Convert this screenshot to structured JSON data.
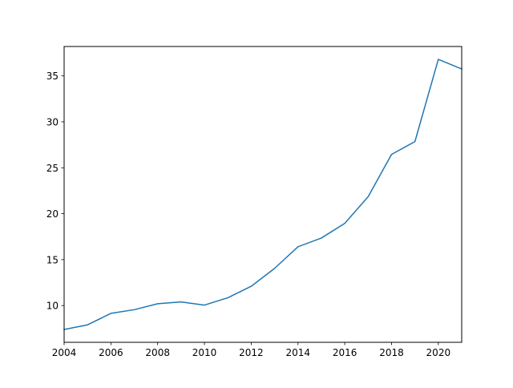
{
  "chart_data": {
    "type": "line",
    "title": "",
    "xlabel": "",
    "ylabel": "",
    "xlim": [
      2004,
      2021
    ],
    "ylim": [
      6.0,
      38.2
    ],
    "xticks": [
      2004,
      2006,
      2008,
      2010,
      2012,
      2014,
      2016,
      2018,
      2020
    ],
    "yticks": [
      10,
      15,
      20,
      25,
      30,
      35
    ],
    "grid": false,
    "legend": "none",
    "series": [
      {
        "color": "#1f77b4",
        "x": [
          2004,
          2005,
          2006,
          2007,
          2008,
          2009,
          2010,
          2011,
          2012,
          2013,
          2014,
          2015,
          2016,
          2017,
          2018,
          2019,
          2020,
          2021
        ],
        "y": [
          7.4,
          7.9,
          9.15,
          9.55,
          10.2,
          10.4,
          10.05,
          10.85,
          12.1,
          14.05,
          16.4,
          17.35,
          18.95,
          21.85,
          26.45,
          27.85,
          36.8,
          35.75
        ]
      }
    ]
  }
}
